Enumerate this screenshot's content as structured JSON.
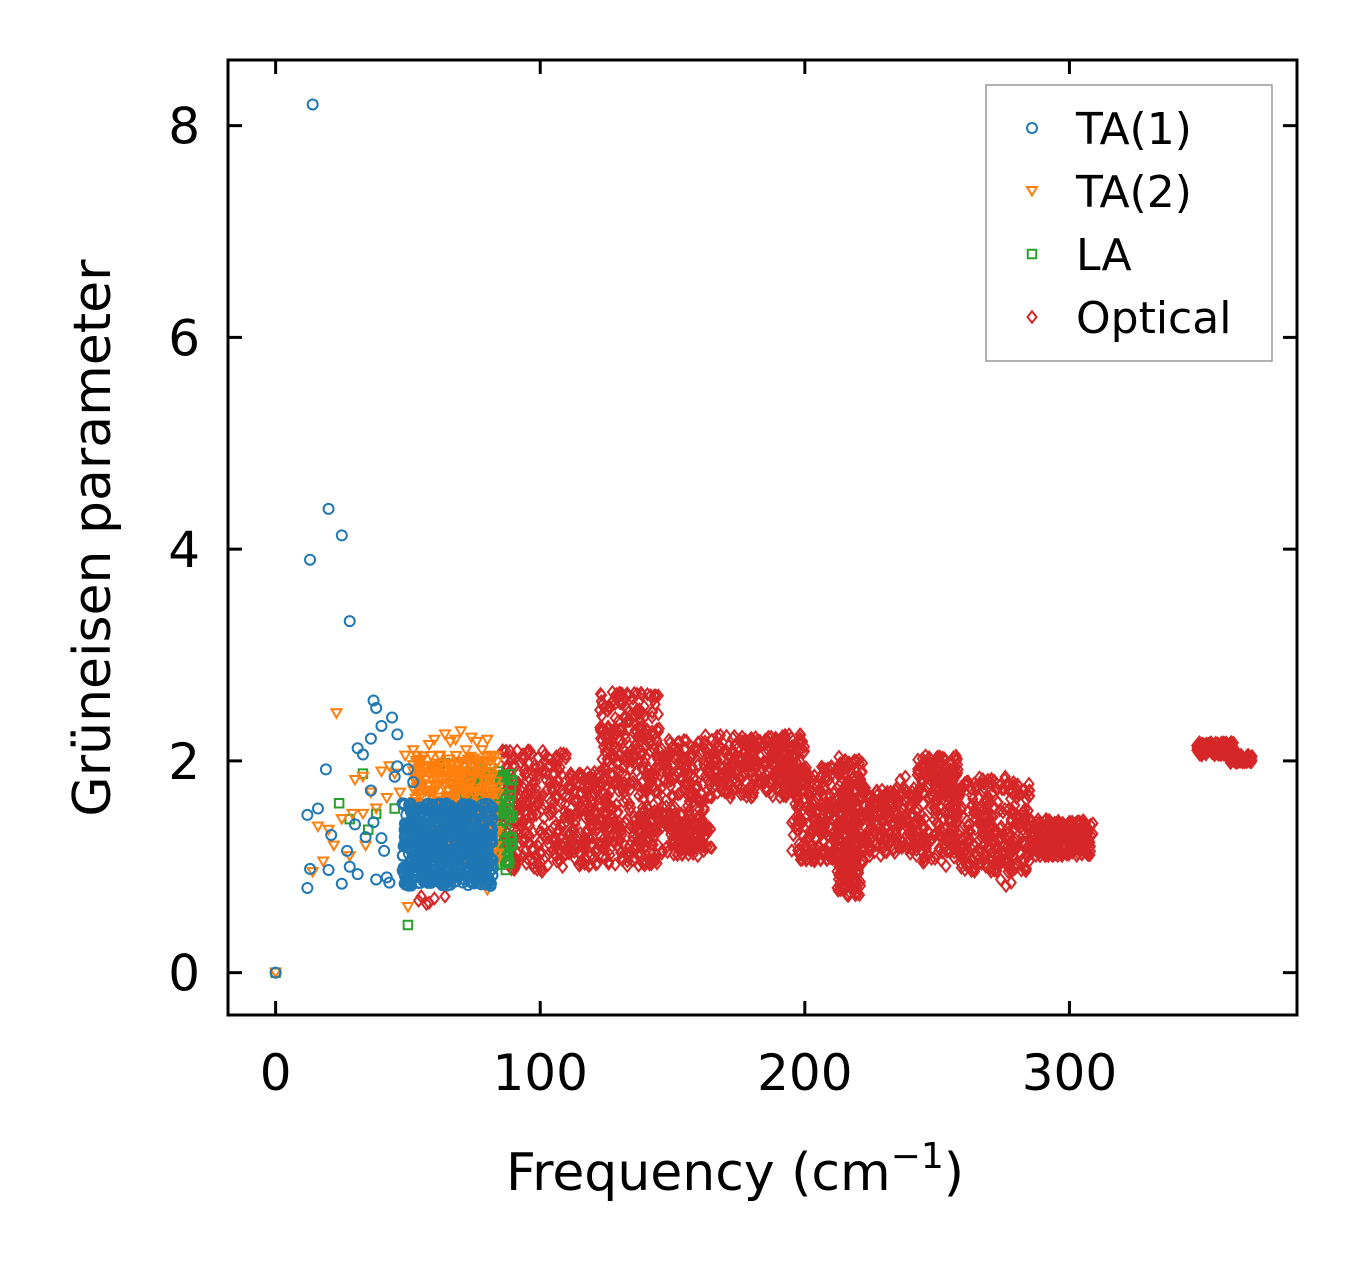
{
  "chart_data": {
    "type": "scatter",
    "title": "",
    "xlabel": "Frequency (cm",
    "xlabel_sup": "−1",
    "xlabel_end": ")",
    "ylabel": "Grüneisen parameter",
    "xlim": [
      -18,
      386
    ],
    "ylim": [
      -0.4,
      8.62
    ],
    "xticks": [
      0,
      100,
      200,
      300
    ],
    "xtick_labels": [
      "0",
      "100",
      "200",
      "300"
    ],
    "yticks": [
      0,
      2,
      4,
      6,
      8
    ],
    "ytick_labels": [
      "0",
      "2",
      "4",
      "6",
      "8"
    ],
    "grid": false,
    "legend_position": "top-right",
    "series": [
      {
        "name": "TA(1)",
        "marker": "circle",
        "color": "#1f77b4",
        "points": [
          [
            0,
            0
          ],
          [
            14,
            8.2
          ],
          [
            19,
            1.92
          ],
          [
            20,
            4.38
          ],
          [
            13,
            3.9
          ],
          [
            25,
            4.13
          ],
          [
            28,
            3.32
          ],
          [
            37,
            2.57
          ],
          [
            38,
            2.5
          ],
          [
            40,
            2.33
          ],
          [
            44,
            2.41
          ],
          [
            46,
            2.25
          ],
          [
            31,
            2.12
          ],
          [
            36,
            2.21
          ],
          [
            33,
            2.06
          ],
          [
            12,
            1.49
          ],
          [
            16,
            1.55
          ],
          [
            13,
            0.98
          ],
          [
            12,
            0.8
          ],
          [
            20,
            0.97
          ],
          [
            21,
            1.3
          ],
          [
            25,
            0.84
          ],
          [
            27,
            1.15
          ],
          [
            28,
            1.0
          ],
          [
            30,
            1.4
          ],
          [
            31,
            0.93
          ],
          [
            34,
            1.28
          ],
          [
            36,
            1.72
          ],
          [
            37,
            1.42
          ],
          [
            38,
            0.88
          ],
          [
            40,
            1.27
          ],
          [
            41,
            1.15
          ],
          [
            42,
            0.9
          ],
          [
            43,
            0.85
          ],
          [
            45,
            1.85
          ],
          [
            46,
            1.95
          ],
          [
            48,
            1.6
          ],
          [
            50,
            1.92
          ],
          [
            52,
            1.8
          ],
          [
            53,
            1.35
          ],
          [
            55,
            1.5
          ],
          [
            57,
            1.1
          ],
          [
            58,
            0.92
          ],
          [
            60,
            1.25
          ],
          [
            62,
            1.45
          ],
          [
            64,
            1.05
          ],
          [
            66,
            1.3
          ],
          [
            68,
            0.95
          ],
          [
            70,
            1.15
          ],
          [
            72,
            1.4
          ],
          [
            74,
            0.9
          ],
          [
            76,
            1.2
          ],
          [
            78,
            1.0
          ],
          [
            80,
            1.1
          ],
          [
            82,
            0.98
          ]
        ],
        "clusters": [
          {
            "x": [
              48,
              82
            ],
            "y": [
              0.82,
              1.6
            ],
            "n": 650,
            "seed": 11
          }
        ]
      },
      {
        "name": "TA(2)",
        "marker": "triangle_down",
        "color": "#ff7f0e",
        "points": [
          [
            0,
            0
          ],
          [
            23,
            2.45
          ],
          [
            14,
            0.95
          ],
          [
            16,
            1.38
          ],
          [
            18,
            1.05
          ],
          [
            20,
            1.35
          ],
          [
            22,
            1.2
          ],
          [
            25,
            1.45
          ],
          [
            28,
            1.1
          ],
          [
            29,
            1.5
          ],
          [
            30,
            1.82
          ],
          [
            33,
            1.85
          ],
          [
            33,
            1.5
          ],
          [
            34,
            1.2
          ],
          [
            36,
            1.7
          ],
          [
            38,
            1.55
          ],
          [
            40,
            1.9
          ],
          [
            42,
            1.65
          ],
          [
            43,
            1.95
          ],
          [
            45,
            1.88
          ],
          [
            47,
            1.7
          ],
          [
            49,
            2.05
          ],
          [
            50,
            0.62
          ],
          [
            52,
            2.1
          ],
          [
            55,
            2.0
          ],
          [
            58,
            2.15
          ],
          [
            60,
            2.2
          ],
          [
            62,
            2.05
          ],
          [
            64,
            2.25
          ],
          [
            66,
            2.18
          ],
          [
            68,
            2.2
          ],
          [
            70,
            2.28
          ],
          [
            72,
            2.1
          ],
          [
            74,
            2.22
          ],
          [
            76,
            2.18
          ],
          [
            78,
            2.1
          ],
          [
            80,
            2.2
          ],
          [
            82,
            2.05
          ],
          [
            80,
            0.78
          ],
          [
            76,
            0.85
          ],
          [
            65,
            0.9
          ]
        ],
        "clusters": [
          {
            "x": [
              52,
              84
            ],
            "y": [
              1.05,
              2.05
            ],
            "n": 380,
            "seed": 23
          }
        ]
      },
      {
        "name": "LA",
        "marker": "square",
        "color": "#2ca02c",
        "points": [
          [
            0,
            0
          ],
          [
            24,
            1.6
          ],
          [
            28,
            1.45
          ],
          [
            33,
            1.88
          ],
          [
            35,
            1.35
          ],
          [
            38,
            1.5
          ],
          [
            45,
            1.55
          ],
          [
            50,
            0.45
          ],
          [
            62,
            1.95
          ],
          [
            64,
            1.98
          ],
          [
            66,
            1.85
          ],
          [
            70,
            1.9
          ],
          [
            75,
            1.9
          ],
          [
            78,
            1.92
          ],
          [
            80,
            1.88
          ],
          [
            84,
            1.9
          ],
          [
            86,
            1.85
          ],
          [
            88,
            1.5
          ],
          [
            87,
            0.97
          ],
          [
            85,
            1.02
          ],
          [
            89,
            1.2
          ]
        ],
        "clusters": [
          {
            "x": [
              70,
              90
            ],
            "y": [
              1.0,
              1.88
            ],
            "n": 170,
            "seed": 37
          }
        ]
      },
      {
        "name": "Optical",
        "marker": "diamond",
        "color": "#d62728",
        "points": [
          [
            54,
            0.68
          ],
          [
            57,
            0.65
          ],
          [
            60,
            0.7
          ],
          [
            64,
            0.72
          ],
          [
            55,
            0.72
          ],
          [
            58,
            0.66
          ],
          [
            50,
            1.0
          ],
          [
            52,
            1.25
          ],
          [
            278,
            0.85
          ],
          [
            276,
            0.82
          ],
          [
            274,
            0.88
          ],
          [
            236,
            1.82
          ],
          [
            238,
            1.85
          ],
          [
            210,
            1.95
          ],
          [
            196,
            2.05
          ],
          [
            194,
            2.02
          ]
        ],
        "clusters": [
          {
            "x": [
              85,
              110
            ],
            "y": [
              0.95,
              2.1
            ],
            "n": 260,
            "seed": 41
          },
          {
            "x": [
              110,
              122
            ],
            "y": [
              1.0,
              1.9
            ],
            "n": 140,
            "seed": 42
          },
          {
            "x": [
              122,
              145
            ],
            "y": [
              1.0,
              2.65
            ],
            "n": 420,
            "seed": 43
          },
          {
            "x": [
              145,
              162
            ],
            "y": [
              1.1,
              2.2
            ],
            "n": 200,
            "seed": 44
          },
          {
            "x": [
              150,
              165
            ],
            "y": [
              1.15,
              1.4
            ],
            "n": 60,
            "seed": 45
          },
          {
            "x": [
              162,
              200
            ],
            "y": [
              1.65,
              2.25
            ],
            "n": 330,
            "seed": 46
          },
          {
            "x": [
              195,
              212
            ],
            "y": [
              1.05,
              1.95
            ],
            "n": 200,
            "seed": 47
          },
          {
            "x": [
              212,
              222
            ],
            "y": [
              0.72,
              2.05
            ],
            "n": 260,
            "seed": 48
          },
          {
            "x": [
              222,
              242
            ],
            "y": [
              1.1,
              1.75
            ],
            "n": 200,
            "seed": 49
          },
          {
            "x": [
              242,
              258
            ],
            "y": [
              1.0,
              2.05
            ],
            "n": 240,
            "seed": 50
          },
          {
            "x": [
              258,
              285
            ],
            "y": [
              0.95,
              1.85
            ],
            "n": 300,
            "seed": 51
          },
          {
            "x": [
              285,
              309
            ],
            "y": [
              1.1,
              1.45
            ],
            "n": 220,
            "seed": 52
          },
          {
            "x": [
              348,
              362
            ],
            "y": [
              2.05,
              2.18
            ],
            "n": 120,
            "seed": 53
          },
          {
            "x": [
              360,
              369
            ],
            "y": [
              1.98,
              2.06
            ],
            "n": 70,
            "seed": 54
          }
        ]
      }
    ]
  }
}
